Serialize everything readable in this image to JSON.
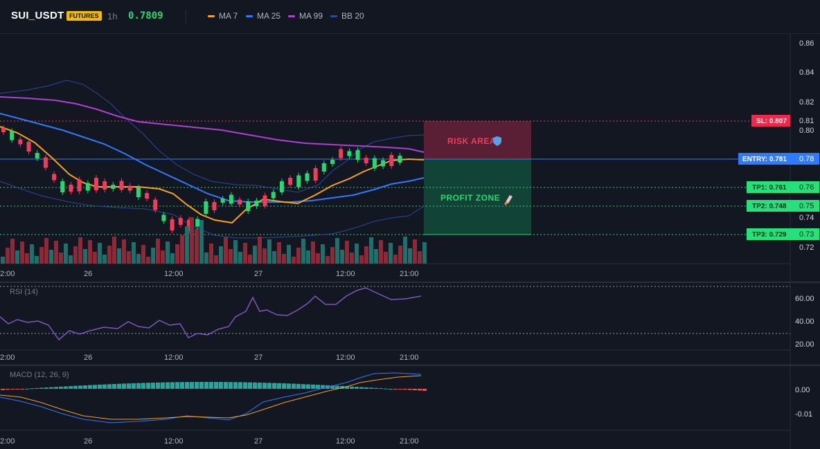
{
  "header": {
    "symbol": "SUI_USDT",
    "badge": "FUTURES",
    "timeframe": "1h",
    "last_price": "0.7809",
    "legend": [
      {
        "label": "MA 7",
        "color": "#f7a21b"
      },
      {
        "label": "MA 25",
        "color": "#2f7bff"
      },
      {
        "label": "MA 99",
        "color": "#b03fd6"
      },
      {
        "label": "BB 20",
        "color": "#2a4a9a"
      }
    ]
  },
  "price_axis": [
    "0.86",
    "0.84",
    "0.82",
    "0.80",
    "0.78",
    "0.76",
    "0.75",
    "0.74",
    "0.73",
    "0.72"
  ],
  "time_axis": [
    "2:00",
    "26",
    "12:00",
    "27",
    "12:00",
    "21:00"
  ],
  "levels": {
    "sl": {
      "label": "SL: 0.807",
      "axis": "0.81",
      "price": 0.807
    },
    "entry": {
      "label": "ENTRY: 0.781",
      "axis": "0.78",
      "price": 0.781
    },
    "tp1": {
      "label": "TP1: 0.761",
      "axis": "0.76",
      "price": 0.761
    },
    "tp2": {
      "label": "TP2: 0.748",
      "axis": "0.75",
      "price": 0.748
    },
    "tp3": {
      "label": "TP3: 0.729",
      "axis": "0.73",
      "price": 0.729
    }
  },
  "zones": {
    "risk": "RISK AREA",
    "risk_icon": "shield-icon",
    "profit": "PROFIT ZONE",
    "profit_icon": "rocket-icon"
  },
  "rsi": {
    "title": "RSI (14)",
    "axis": [
      "60.00",
      "40.00",
      "20.00"
    ],
    "upper": 70,
    "lower": 30
  },
  "macd": {
    "title": "MACD (12, 26, 9)",
    "axis": [
      "0.00",
      "-0.01"
    ]
  },
  "colors": {
    "up": "#26d96f",
    "down": "#f23d5a",
    "up_vol": "#1f6f6b",
    "down_vol": "#8e2a37",
    "rsi": "#7e57c2"
  }
}
